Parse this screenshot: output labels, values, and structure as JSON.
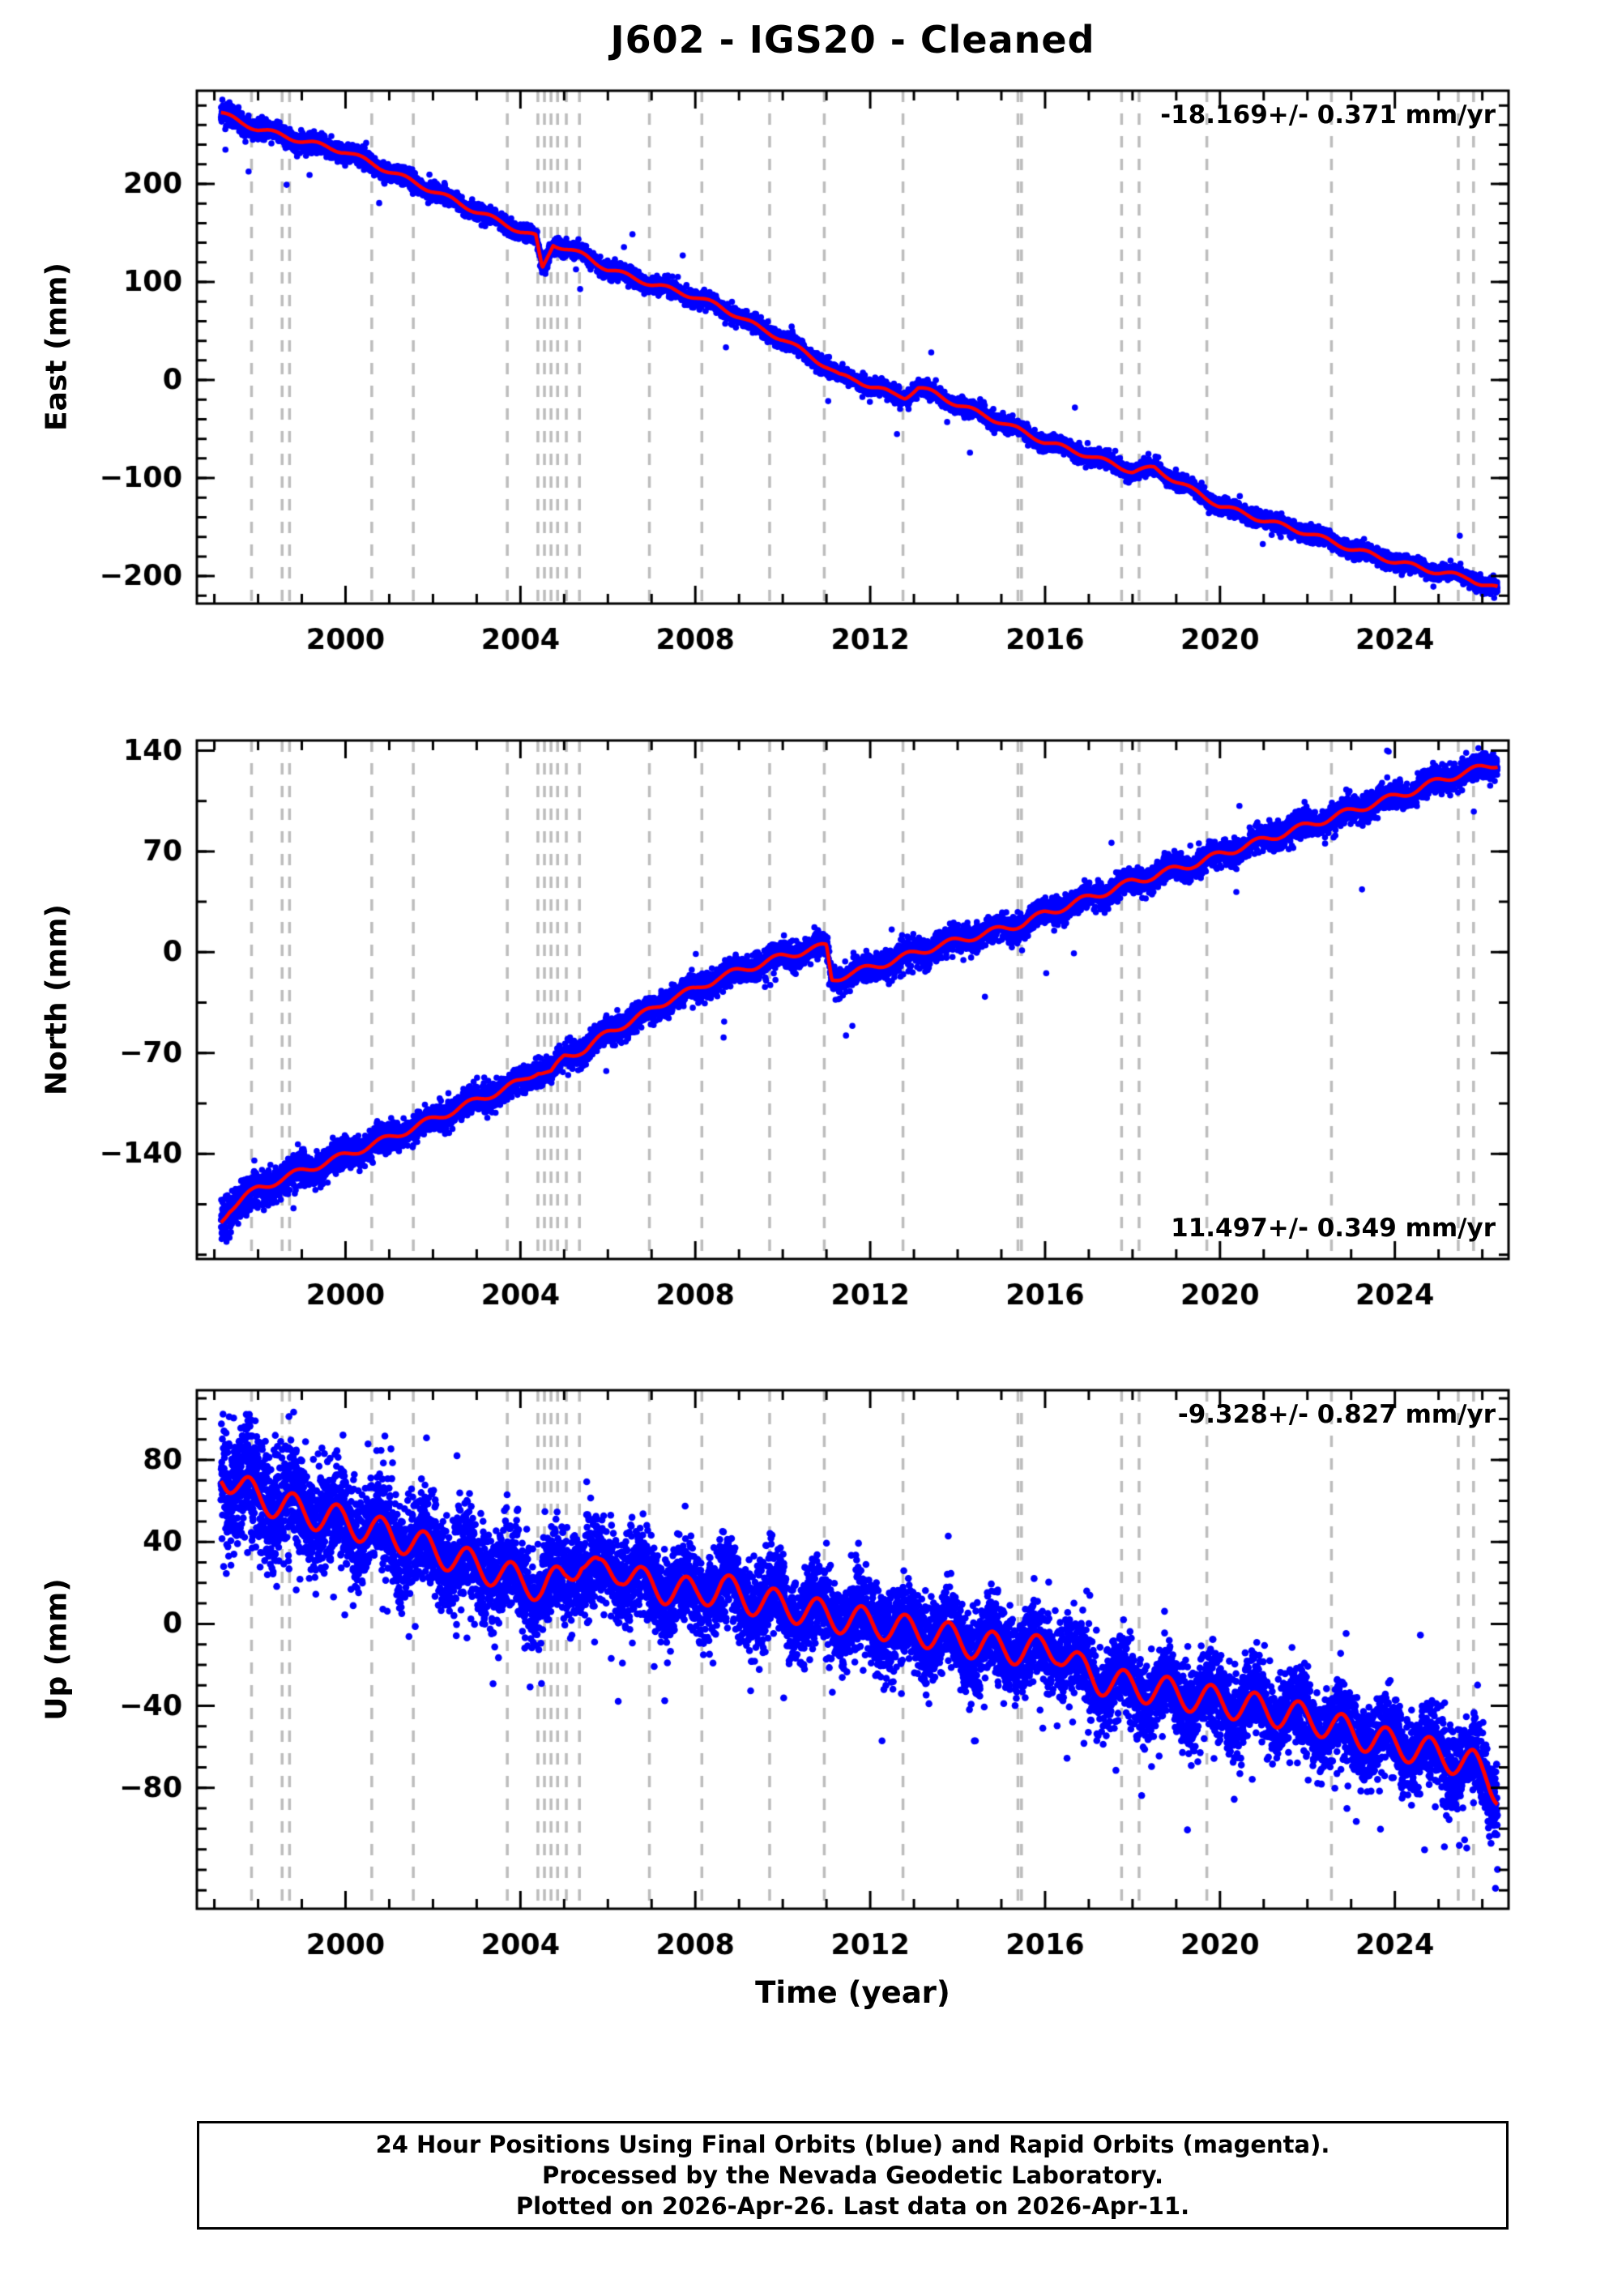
{
  "title": "J602  - IGS20 - Cleaned",
  "footer": {
    "lines": [
      "24 Hour Positions Using Final Orbits (blue) and Rapid Orbits (magenta).",
      "Processed by the Nevada Geodetic Laboratory.",
      "Plotted on 2026-Apr-26. Last data on 2026-Apr-11."
    ]
  },
  "chart_data": {
    "type": "scatter",
    "xlabel": "Time (year)",
    "x_range": [
      1996.6,
      2026.6
    ],
    "x_major_ticks": [
      2000,
      2004,
      2008,
      2012,
      2016,
      2020,
      2024
    ],
    "x_minor_step": 1,
    "data_span": [
      1997.15,
      2026.35
    ],
    "event_years": [
      1997.85,
      1998.55,
      1998.72,
      2000.6,
      2001.55,
      2003.7,
      2004.4,
      2004.55,
      2004.7,
      2004.85,
      2005.05,
      2005.35,
      2006.95,
      2008.15,
      2009.7,
      2010.95,
      2012.75,
      2015.38,
      2015.46,
      2017.75,
      2018.15,
      2019.7,
      2022.55,
      2025.45,
      2025.8
    ],
    "colors": {
      "points": "#0000ff",
      "trend": "#ff0000",
      "events": "#bdbdbd",
      "frame": "#000000"
    },
    "panels": [
      {
        "name": "east",
        "ylabel": "East (mm)",
        "rate_label": "-18.169+/- 0.371 mm/yr",
        "rate_position": "top-right",
        "ylim": [
          -228,
          295
        ],
        "yticks": [
          -200,
          -100,
          0,
          100,
          200
        ],
        "y_minor_step": 20,
        "trend_points": [
          [
            1997.15,
            272
          ],
          [
            1997.6,
            263
          ],
          [
            1998.0,
            256
          ],
          [
            1999.0,
            244
          ],
          [
            2000.0,
            233
          ],
          [
            2001.0,
            213
          ],
          [
            2002.0,
            193
          ],
          [
            2003.0,
            172
          ],
          [
            2004.0,
            152
          ],
          [
            2004.35,
            146
          ],
          [
            2004.5,
            113
          ],
          [
            2004.75,
            139
          ],
          [
            2005.5,
            126
          ],
          [
            2006.0,
            113
          ],
          [
            2007.0,
            98
          ],
          [
            2008.0,
            85
          ],
          [
            2008.5,
            76
          ],
          [
            2009.0,
            65
          ],
          [
            2009.5,
            52
          ],
          [
            2010.0,
            42
          ],
          [
            2010.5,
            28
          ],
          [
            2011.0,
            14
          ],
          [
            2011.3,
            4
          ],
          [
            2011.7,
            0
          ],
          [
            2012.0,
            -6
          ],
          [
            2012.5,
            -14
          ],
          [
            2012.8,
            -17
          ],
          [
            2013.1,
            -8
          ],
          [
            2013.5,
            -14
          ],
          [
            2014.0,
            -25
          ],
          [
            2015.0,
            -43
          ],
          [
            2016.0,
            -63
          ],
          [
            2017.0,
            -77
          ],
          [
            2018.0,
            -93
          ],
          [
            2018.5,
            -90
          ],
          [
            2019.0,
            -103
          ],
          [
            2020.0,
            -128
          ],
          [
            2021.0,
            -143
          ],
          [
            2022.0,
            -156
          ],
          [
            2023.0,
            -172
          ],
          [
            2024.0,
            -185
          ],
          [
            2025.0,
            -196
          ],
          [
            2025.7,
            -202
          ],
          [
            2026.0,
            -208
          ],
          [
            2026.35,
            -213
          ]
        ],
        "seasonal_amplitude": 2.5,
        "seasonal_phase": 0.1,
        "noise_profile": [
          [
            1997.2,
            5.5
          ],
          [
            1999,
            4.8
          ],
          [
            2003,
            4.2
          ],
          [
            2026.4,
            4.0
          ]
        ],
        "points_per_year": 330,
        "outlier_rate": 0.002,
        "seed": 11
      },
      {
        "name": "north",
        "ylabel": "North (mm)",
        "rate_label": "11.497+/- 0.349 mm/yr",
        "rate_position": "bottom-right",
        "ylim": [
          -213,
          147
        ],
        "yticks": [
          -140,
          -70,
          0,
          70,
          140
        ],
        "y_minor_step": 35,
        "trend_points": [
          [
            1997.15,
            -187
          ],
          [
            1997.35,
            -178
          ],
          [
            1997.7,
            -170
          ],
          [
            1998.0,
            -164
          ],
          [
            1998.5,
            -158
          ],
          [
            1999.0,
            -152
          ],
          [
            2000.0,
            -141
          ],
          [
            2001.0,
            -129
          ],
          [
            2002.0,
            -116
          ],
          [
            2003.0,
            -103
          ],
          [
            2004.0,
            -90
          ],
          [
            2004.4,
            -82
          ],
          [
            2004.7,
            -84
          ],
          [
            2005.0,
            -73
          ],
          [
            2005.5,
            -67
          ],
          [
            2006.0,
            -56
          ],
          [
            2006.5,
            -48
          ],
          [
            2007.0,
            -40
          ],
          [
            2007.5,
            -31
          ],
          [
            2008.0,
            -26
          ],
          [
            2008.5,
            -18
          ],
          [
            2009.0,
            -13
          ],
          [
            2009.5,
            -8
          ],
          [
            2010.0,
            -3
          ],
          [
            2010.5,
            1
          ],
          [
            2011.0,
            4
          ],
          [
            2011.12,
            -19
          ],
          [
            2011.5,
            -15
          ],
          [
            2012.0,
            -11
          ],
          [
            2012.5,
            -6
          ],
          [
            2013.0,
            -1
          ],
          [
            2013.5,
            4
          ],
          [
            2014.0,
            8
          ],
          [
            2014.5,
            12
          ],
          [
            2015.0,
            16
          ],
          [
            2015.5,
            20
          ],
          [
            2016.0,
            27
          ],
          [
            2016.5,
            32
          ],
          [
            2017.0,
            38
          ],
          [
            2017.5,
            43
          ],
          [
            2018.0,
            49
          ],
          [
            2018.5,
            53
          ],
          [
            2019.0,
            58
          ],
          [
            2019.5,
            62
          ],
          [
            2020.0,
            68
          ],
          [
            2020.5,
            73
          ],
          [
            2021.0,
            78
          ],
          [
            2021.5,
            83
          ],
          [
            2022.0,
            88
          ],
          [
            2022.5,
            93
          ],
          [
            2023.0,
            98
          ],
          [
            2023.5,
            103
          ],
          [
            2024.0,
            108
          ],
          [
            2024.5,
            113
          ],
          [
            2025.0,
            119
          ],
          [
            2025.5,
            124
          ],
          [
            2026.0,
            128
          ],
          [
            2026.35,
            131
          ]
        ],
        "seasonal_amplitude": 2.5,
        "seasonal_phase": 0.6,
        "noise_profile": [
          [
            1997.2,
            7
          ],
          [
            1999,
            5.5
          ],
          [
            2003,
            4.6
          ],
          [
            2026.4,
            4.2
          ]
        ],
        "points_per_year": 330,
        "outlier_rate": 0.002,
        "seed": 22
      },
      {
        "name": "up",
        "ylabel": "Up (mm)",
        "rate_label": "-9.328+/- 0.827 mm/yr",
        "rate_position": "top-right",
        "ylim": [
          -139,
          114
        ],
        "yticks": [
          -80,
          -40,
          0,
          40,
          80
        ],
        "y_minor_step": 10,
        "trend_points": [
          [
            1997.2,
            74
          ],
          [
            1997.6,
            66
          ],
          [
            1998.0,
            62
          ],
          [
            1998.5,
            58
          ],
          [
            1999.0,
            55
          ],
          [
            1999.5,
            52
          ],
          [
            2000.0,
            50
          ],
          [
            2000.5,
            46
          ],
          [
            2001.0,
            44
          ],
          [
            2001.5,
            40
          ],
          [
            2002.0,
            36
          ],
          [
            2002.5,
            32
          ],
          [
            2003.0,
            28
          ],
          [
            2003.5,
            25
          ],
          [
            2004.0,
            21
          ],
          [
            2004.5,
            18
          ],
          [
            2005.0,
            22
          ],
          [
            2005.4,
            33
          ],
          [
            2005.8,
            24
          ],
          [
            2006.3,
            27
          ],
          [
            2006.8,
            20
          ],
          [
            2007.3,
            17
          ],
          [
            2008.0,
            15
          ],
          [
            2008.6,
            18
          ],
          [
            2009.2,
            12
          ],
          [
            2010.0,
            9
          ],
          [
            2010.8,
            5
          ],
          [
            2011.5,
            2
          ],
          [
            2012.2,
            0
          ],
          [
            2012.8,
            -3
          ],
          [
            2013.5,
            -5
          ],
          [
            2014.2,
            -9
          ],
          [
            2015.0,
            -12
          ],
          [
            2015.8,
            -13
          ],
          [
            2016.3,
            -12
          ],
          [
            2016.8,
            -22
          ],
          [
            2017.2,
            -27
          ],
          [
            2017.8,
            -30
          ],
          [
            2018.5,
            -32
          ],
          [
            2019.2,
            -35
          ],
          [
            2020.0,
            -38
          ],
          [
            2020.8,
            -41
          ],
          [
            2021.5,
            -44
          ],
          [
            2022.2,
            -47
          ],
          [
            2023.0,
            -53
          ],
          [
            2023.8,
            -58
          ],
          [
            2024.5,
            -61
          ],
          [
            2025.2,
            -65
          ],
          [
            2025.8,
            -69
          ],
          [
            2026.1,
            -74
          ],
          [
            2026.35,
            -81
          ]
        ],
        "seasonal_amplitude": 7.5,
        "seasonal_phase": 0.55,
        "noise_profile": [
          [
            1997.2,
            16
          ],
          [
            1999,
            13
          ],
          [
            2002,
            11.5
          ],
          [
            2006,
            10.5
          ],
          [
            2012,
            10
          ],
          [
            2018,
            9.5
          ],
          [
            2026.4,
            9
          ]
        ],
        "points_per_year": 360,
        "outlier_rate": 0.01,
        "seed": 33
      }
    ]
  }
}
